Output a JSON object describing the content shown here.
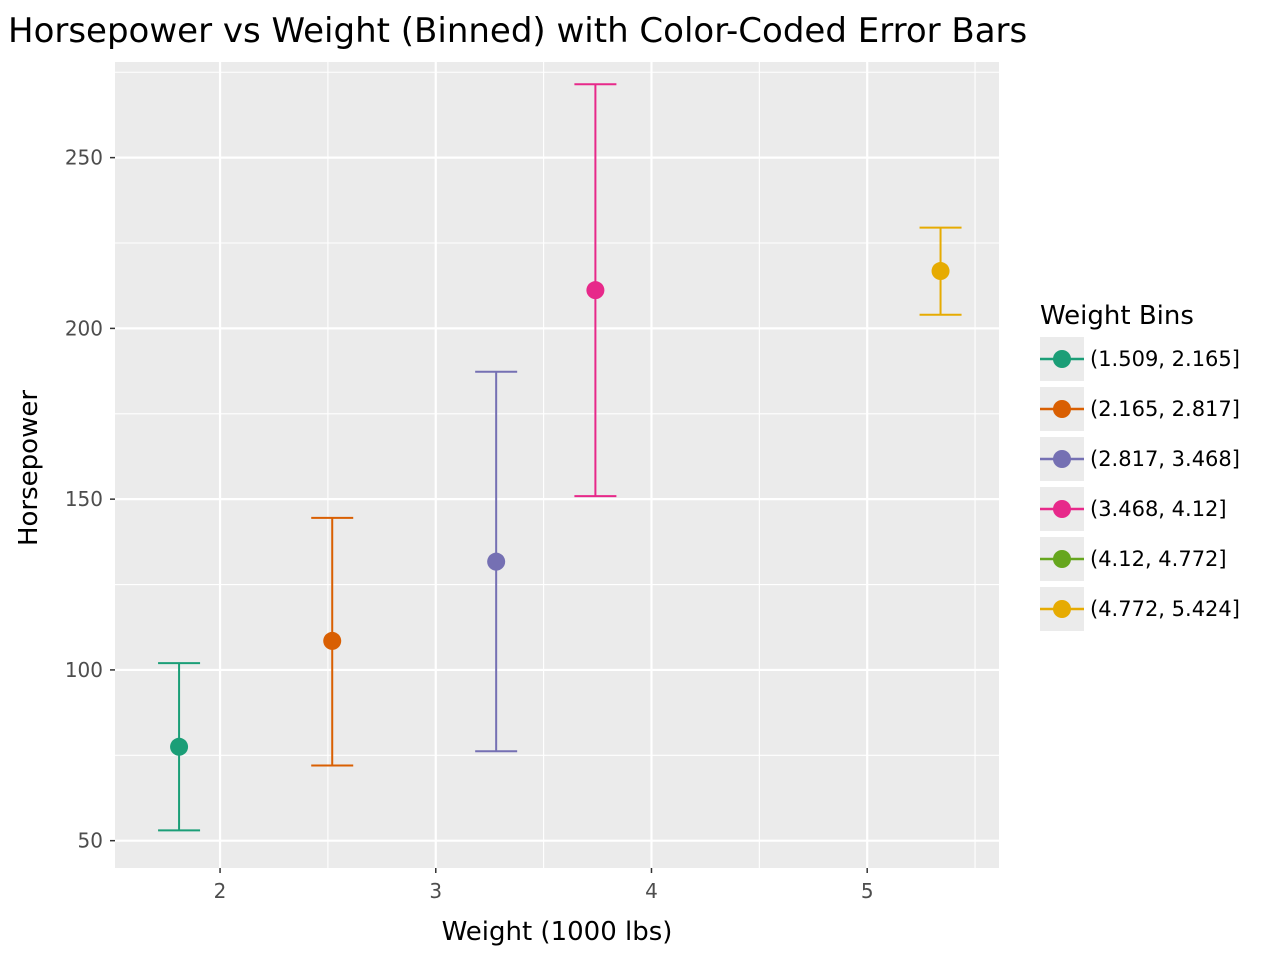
{
  "chart_data": {
    "type": "scatter",
    "title": "Horsepower vs Weight (Binned) with Color-Coded Error Bars",
    "xlabel": "Weight (1000 lbs)",
    "ylabel": "Horsepower",
    "xlim": [
      1.513,
      5.611
    ],
    "ylim": [
      42.0,
      278.0
    ],
    "xticks": [
      2,
      3,
      4,
      5
    ],
    "yticks": [
      50,
      100,
      150,
      200,
      250
    ],
    "grid": true,
    "legend": {
      "title": "Weight Bins",
      "position": "right"
    },
    "series": [
      {
        "name": "(1.509, 2.165]",
        "color": "#1b9e77",
        "x": 1.81,
        "y": 77.5,
        "ymin": 53.0,
        "ymax": 102.0
      },
      {
        "name": "(2.165, 2.817]",
        "color": "#d95f02",
        "x": 2.52,
        "y": 108.5,
        "ymin": 72.0,
        "ymax": 144.5
      },
      {
        "name": "(2.817, 3.468]",
        "color": "#7570b3",
        "x": 3.28,
        "y": 131.7,
        "ymin": 76.2,
        "ymax": 187.3
      },
      {
        "name": "(3.468, 4.12]",
        "color": "#e7298a",
        "x": 3.74,
        "y": 211.2,
        "ymin": 150.9,
        "ymax": 271.5
      },
      {
        "name": "(4.12, 4.772]",
        "color": "#66a61e",
        "x": null,
        "y": null,
        "ymin": null,
        "ymax": null
      },
      {
        "name": "(4.772, 5.424]",
        "color": "#e6ab02",
        "x": 5.34,
        "y": 216.8,
        "ymin": 204.0,
        "ymax": 229.5
      }
    ]
  }
}
